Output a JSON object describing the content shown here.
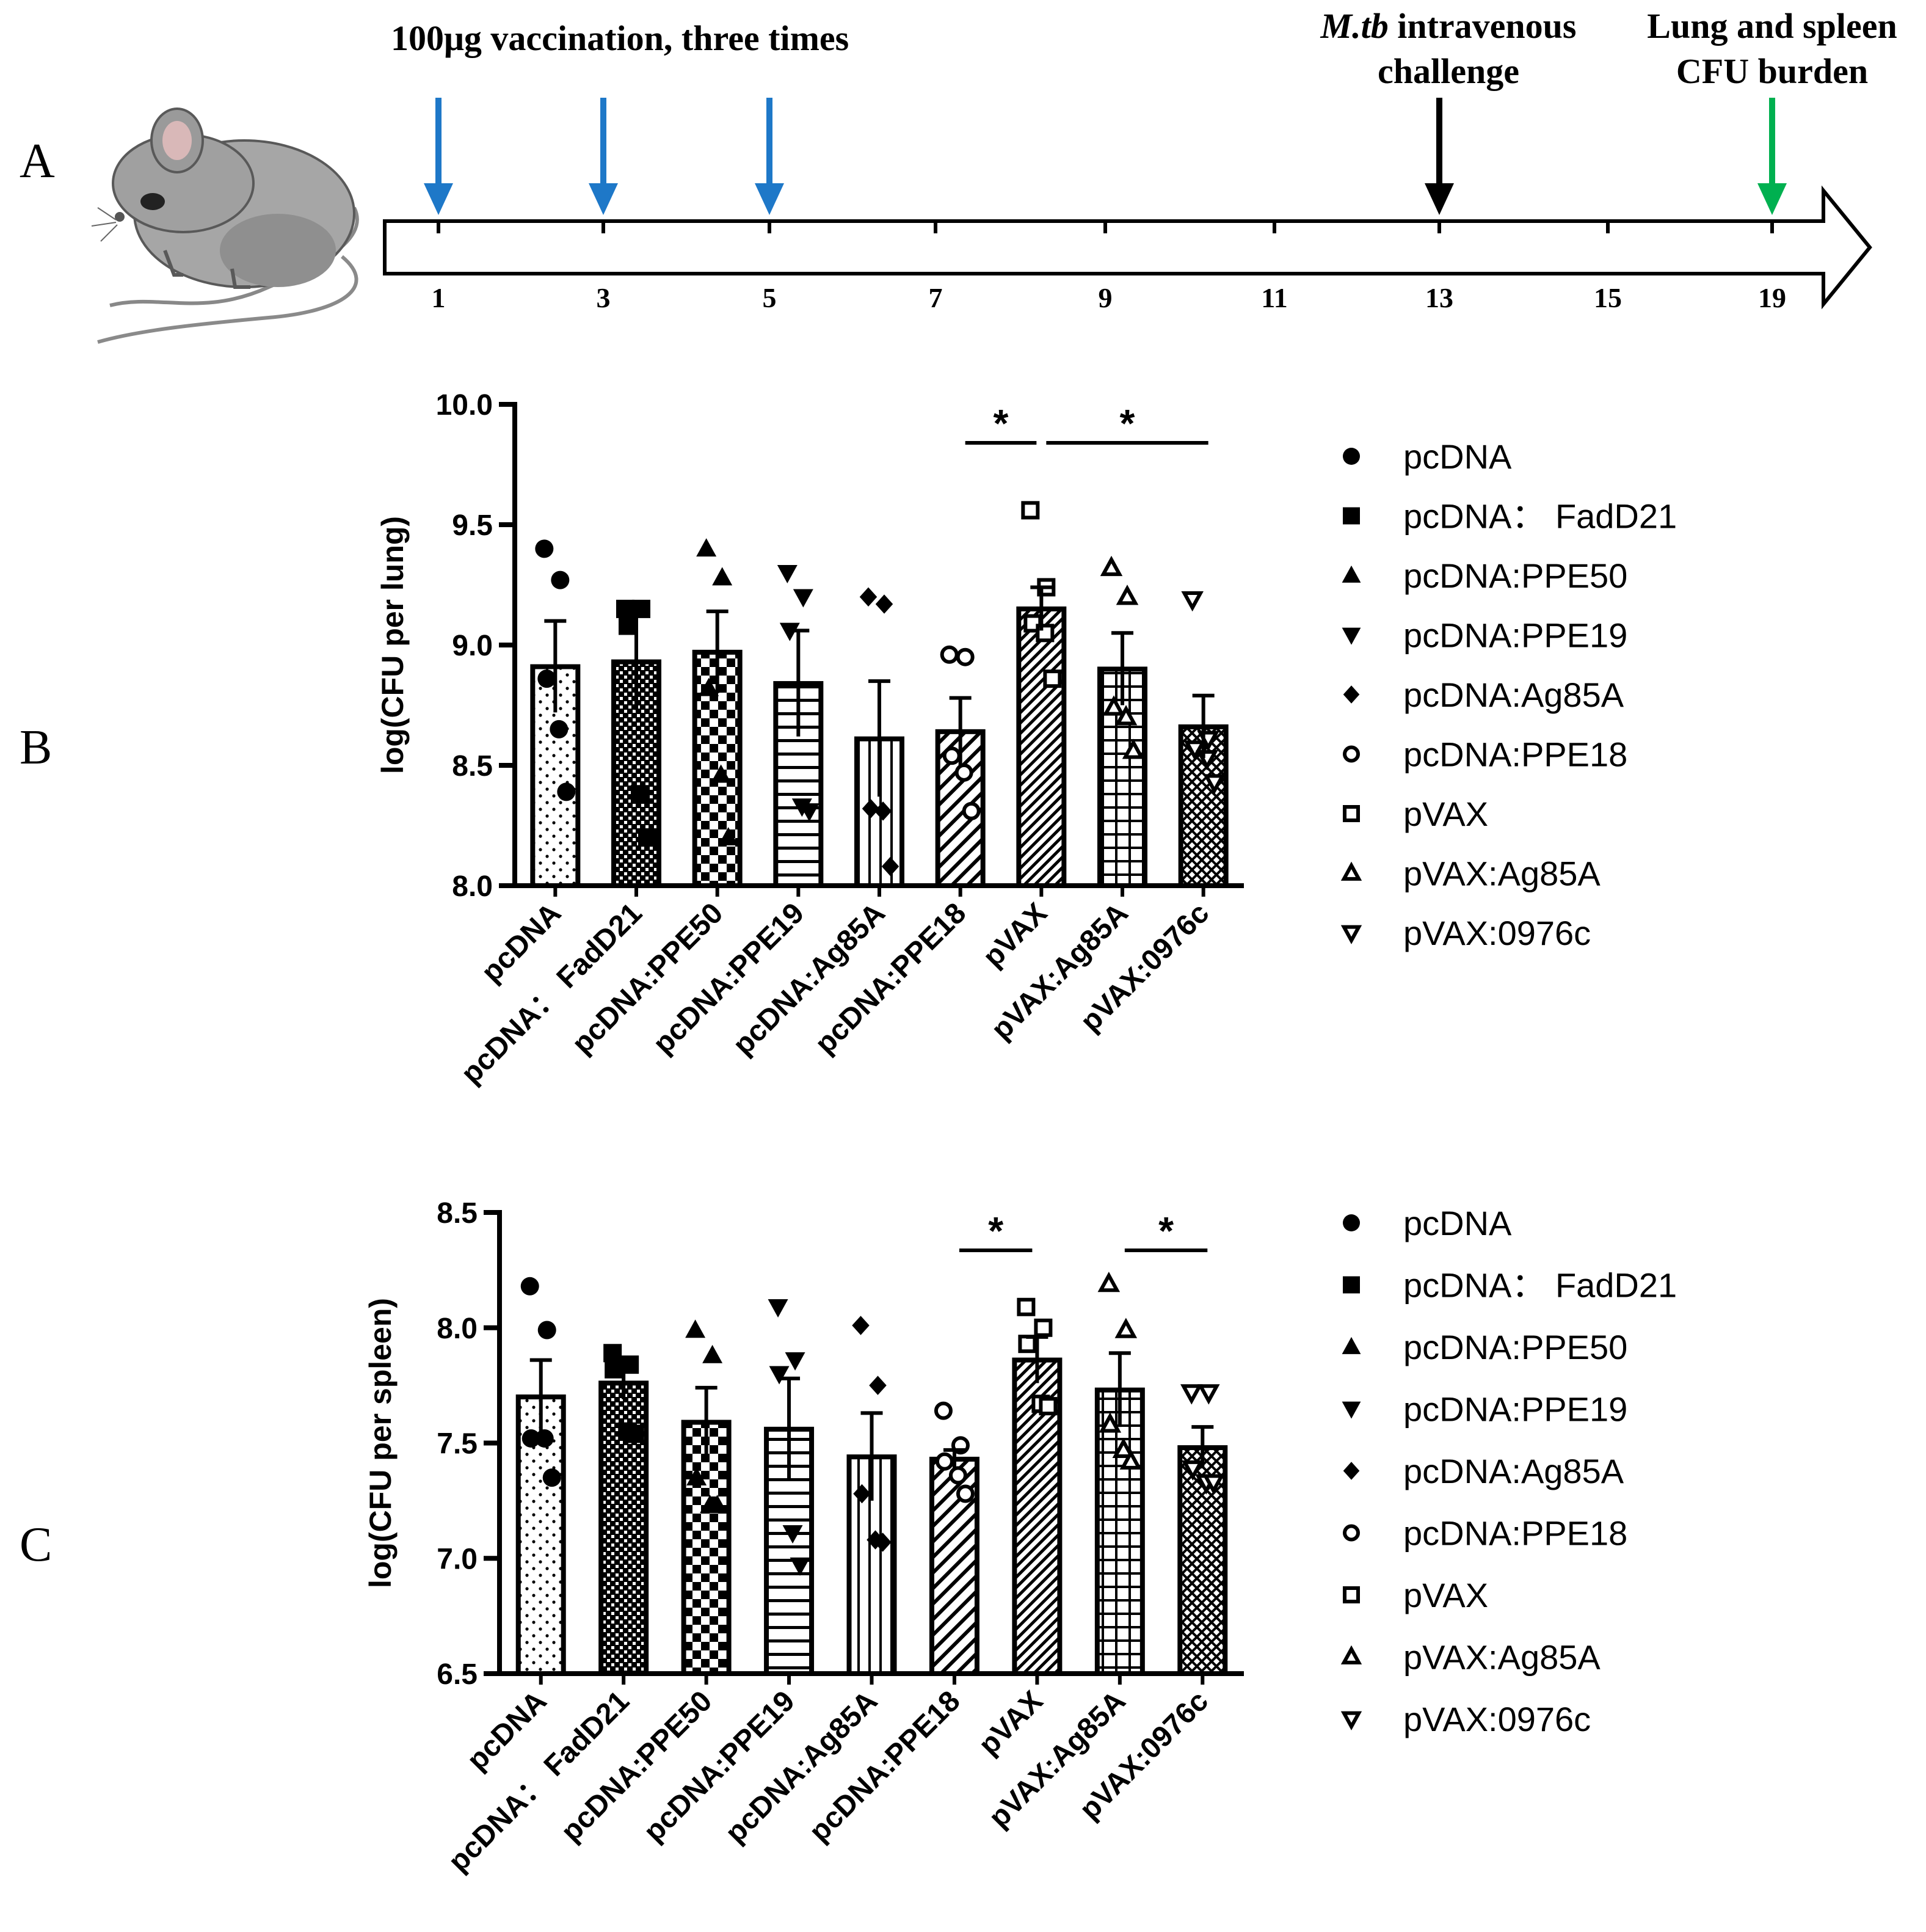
{
  "panel_labels": {
    "a": "A",
    "b": "B",
    "c": "C"
  },
  "timeline": {
    "vaccination_label": "100μg vaccination, three times",
    "challenge_italic": "M.tb",
    "challenge_rest": " intravenous",
    "challenge_line2": "challenge",
    "burden_line1": "Lung and spleen",
    "burden_line2": "CFU burden",
    "ticks": [
      "1",
      "3",
      "5",
      "7",
      "9",
      "11",
      "13",
      "15",
      "19"
    ],
    "vaccination_weeks": [
      "1",
      "3",
      "5"
    ],
    "challenge_week": "13",
    "burden_week": "19",
    "colors": {
      "vaccination": "#1e78c8",
      "challenge": "#000000",
      "burden": "#00b050"
    }
  },
  "chart_data": [
    {
      "type": "bar",
      "panel": "B",
      "title": "",
      "xlabel": "",
      "ylabel": "log(CFU per lung)",
      "ylim": [
        8.0,
        10.0
      ],
      "yticks": [
        "8.0",
        "8.5",
        "9.0",
        "9.5",
        "10.0"
      ],
      "categories": [
        "pcDNA",
        "pcDNA： FadD21",
        "pcDNA:PPE50",
        "pcDNA:PPE19",
        "pcDNA:Ag85A",
        "pcDNA:PPE18",
        "pVAX",
        "pVAX:Ag85A",
        "pVAX:0976c"
      ],
      "values": [
        8.91,
        8.93,
        8.97,
        8.84,
        8.61,
        8.64,
        9.15,
        8.9,
        8.66
      ],
      "sem": [
        0.19,
        0.2,
        0.17,
        0.22,
        0.24,
        0.14,
        0.09,
        0.15,
        0.13
      ],
      "points": [
        [
          9.4,
          9.27,
          8.86,
          8.65,
          8.39
        ],
        [
          9.15,
          9.15,
          9.08,
          8.38,
          8.2
        ],
        [
          9.4,
          9.28,
          8.82,
          8.46,
          8.2
        ],
        [
          9.3,
          9.2,
          9.06,
          8.33,
          8.31
        ],
        [
          9.2,
          9.17,
          8.32,
          8.31,
          8.08
        ],
        [
          8.96,
          8.95,
          8.54,
          8.47,
          8.31
        ],
        [
          9.56,
          9.24,
          9.09,
          9.05,
          8.86
        ],
        [
          9.32,
          9.2,
          8.74,
          8.7,
          8.56
        ],
        [
          9.19,
          8.61,
          8.57,
          8.53,
          8.43
        ]
      ],
      "markers": [
        "circle",
        "square",
        "triangle-up",
        "triangle-down",
        "diamond",
        "circle-open",
        "square-open",
        "triangle-up-open",
        "triangle-down-open"
      ],
      "patterns": [
        "dots",
        "fine-checker",
        "checker",
        "hlines",
        "vlines",
        "diag",
        "diag-dense",
        "grid",
        "crosshatch"
      ],
      "significance": [
        {
          "from": "pcDNA:PPE18",
          "to": "pVAX",
          "label": "*"
        },
        {
          "from": "pVAX",
          "to": "pVAX:0976c",
          "label": "*"
        }
      ],
      "legend": {
        "position": "right",
        "labels": [
          "pcDNA",
          "pcDNA： FadD21",
          "pcDNA:PPE50",
          "pcDNA:PPE19",
          "pcDNA:Ag85A",
          "pcDNA:PPE18",
          "pVAX",
          "pVAX:Ag85A",
          "pVAX:0976c"
        ]
      }
    },
    {
      "type": "bar",
      "panel": "C",
      "title": "",
      "xlabel": "",
      "ylabel": "log(CFU per spleen)",
      "ylim": [
        6.5,
        8.5
      ],
      "yticks": [
        "6.5",
        "7.0",
        "7.5",
        "8.0",
        "8.5"
      ],
      "categories": [
        "pcDNA",
        "pcDNA： FadD21",
        "pcDNA:PPE50",
        "pcDNA:PPE19",
        "pcDNA:Ag85A",
        "pcDNA:PPE18",
        "pVAX",
        "pVAX:Ag85A",
        "pVAX:0976c"
      ],
      "values": [
        7.7,
        7.76,
        7.59,
        7.56,
        7.44,
        7.43,
        7.86,
        7.73,
        7.48
      ],
      "sem": [
        0.16,
        0.07,
        0.15,
        0.22,
        0.19,
        0.04,
        0.1,
        0.16,
        0.09
      ],
      "points": [
        [
          8.18,
          7.99,
          7.52,
          7.52,
          7.35
        ],
        [
          7.89,
          7.84,
          7.82,
          7.55,
          7.54
        ],
        [
          7.99,
          7.88,
          7.35,
          7.23,
          7.23
        ],
        [
          8.09,
          7.86,
          7.8,
          7.11,
          6.97
        ],
        [
          8.01,
          7.75,
          7.28,
          7.08,
          7.07
        ],
        [
          7.64,
          7.49,
          7.42,
          7.36,
          7.28
        ],
        [
          8.09,
          8.0,
          7.93,
          7.67,
          7.66
        ],
        [
          8.19,
          7.99,
          7.58,
          7.47,
          7.42
        ],
        [
          7.72,
          7.72,
          7.39,
          7.33,
          7.33
        ]
      ],
      "markers": [
        "circle",
        "square",
        "triangle-up",
        "triangle-down",
        "diamond",
        "circle-open",
        "square-open",
        "triangle-up-open",
        "triangle-down-open"
      ],
      "patterns": [
        "dots",
        "fine-checker",
        "checker",
        "hlines",
        "vlines",
        "diag",
        "diag-dense",
        "grid",
        "crosshatch"
      ],
      "significance": [
        {
          "from": "pcDNA:PPE18",
          "to": "pVAX",
          "label": "*"
        },
        {
          "from": "pVAX:Ag85A",
          "to": "pVAX:0976c",
          "label": "*"
        }
      ],
      "legend": {
        "position": "right",
        "labels": [
          "pcDNA",
          "pcDNA： FadD21",
          "pcDNA:PPE50",
          "pcDNA:PPE19",
          "pcDNA:Ag85A",
          "pcDNA:PPE18",
          "pVAX",
          "pVAX:Ag85A",
          "pVAX:0976c"
        ]
      }
    }
  ]
}
